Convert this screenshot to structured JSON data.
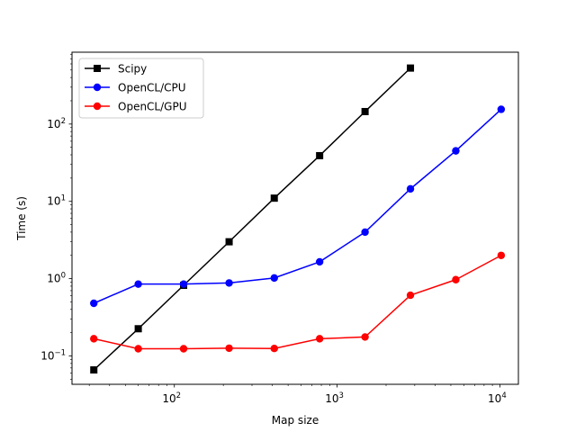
{
  "chart_data": {
    "type": "line",
    "title": "",
    "xlabel": "Map size",
    "ylabel": "Time (s)",
    "xscale": "log",
    "yscale": "log",
    "xlim": [
      23.5,
      13000
    ],
    "ylim": [
      0.043,
      850
    ],
    "grid": false,
    "legend_position": "top-left",
    "x_ticks": [
      {
        "value": 100,
        "base": "10",
        "exp": "2"
      },
      {
        "value": 1000,
        "base": "10",
        "exp": "3"
      },
      {
        "value": 10000,
        "base": "10",
        "exp": "4"
      }
    ],
    "y_ticks": [
      {
        "value": 0.1,
        "base": "10",
        "exp": "−1"
      },
      {
        "value": 1,
        "base": "10",
        "exp": "0"
      },
      {
        "value": 10,
        "base": "10",
        "exp": "1"
      },
      {
        "value": 100,
        "base": "10",
        "exp": "2"
      }
    ],
    "series": [
      {
        "name": "Scipy",
        "color": "#000000",
        "marker": "square",
        "x": [
          32,
          60,
          114,
          217,
          411,
          781,
          1485,
          2822
        ],
        "y": [
          0.066,
          0.225,
          0.82,
          3.0,
          11.0,
          39.0,
          145.0,
          530.0
        ]
      },
      {
        "name": "OpenCL/CPU",
        "color": "#0000ff",
        "marker": "circle",
        "x": [
          32,
          60,
          114,
          217,
          411,
          781,
          1485,
          2822,
          5362,
          10188
        ],
        "y": [
          0.48,
          0.85,
          0.85,
          0.88,
          1.02,
          1.65,
          4.0,
          14.5,
          45.0,
          155.0
        ]
      },
      {
        "name": "OpenCL/GPU",
        "color": "#ff0000",
        "marker": "circle",
        "x": [
          32,
          60,
          114,
          217,
          411,
          781,
          1485,
          2822,
          5362,
          10188
        ],
        "y": [
          0.167,
          0.124,
          0.124,
          0.126,
          0.125,
          0.167,
          0.176,
          0.61,
          0.97,
          2.0
        ]
      }
    ]
  }
}
